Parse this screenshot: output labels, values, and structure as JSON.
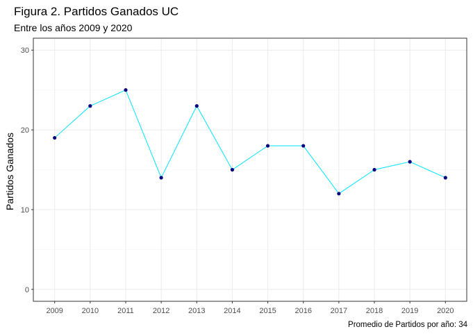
{
  "chart_data": {
    "type": "line",
    "title": "Figura 2. Partidos Ganados UC",
    "subtitle": "Entre los años 2009 y 2020",
    "caption": "Promedio de Partidos por año: 34",
    "xlabel": "",
    "ylabel": "Partidos Ganados",
    "x": [
      "2009",
      "2010",
      "2011",
      "2012",
      "2013",
      "2014",
      "2015",
      "2016",
      "2017",
      "2018",
      "2019",
      "2020"
    ],
    "series": [
      {
        "values": [
          19,
          23,
          25,
          14,
          23,
          15,
          18,
          18,
          12,
          15,
          16,
          14
        ]
      }
    ],
    "ylim": [
      -1.5,
      31.5
    ],
    "yticks": [
      0,
      10,
      20,
      30
    ],
    "grid": true,
    "legend": "none",
    "colors": {
      "line": "#00e5ff",
      "point": "#000080",
      "grid_major": "#ebebeb",
      "grid_minor": "#f5f5f5",
      "panel_border": "#333333",
      "tick_text": "#4d4d4d"
    }
  }
}
